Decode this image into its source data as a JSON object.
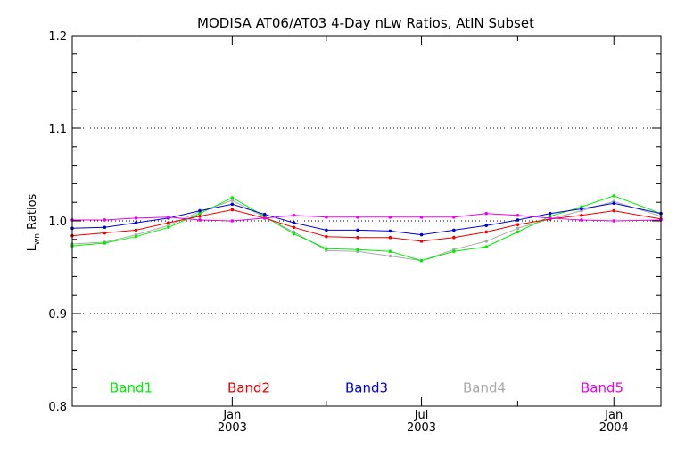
{
  "chart_data": {
    "type": "line",
    "title": "MODISA AT06/AT03 4-Day nLw Ratios, AtIN Subset",
    "ylabel": "Lwn Ratios",
    "ylabel_main": "L",
    "ylabel_sub": "wn",
    "ylabel_rest": " Ratios",
    "xlabel": "",
    "ylim": [
      0.8,
      1.2
    ],
    "yticks": [
      "0.8",
      "0.9",
      "1.0",
      "1.1",
      "1.2"
    ],
    "xlim": [
      "2002-08-01",
      "2004-02-15"
    ],
    "xticks": [
      {
        "month": "Jan",
        "year": "2003",
        "date": "2003-01-01"
      },
      {
        "month": "Jul",
        "year": "2003",
        "date": "2003-07-01"
      },
      {
        "month": "Jan",
        "year": "2004",
        "date": "2004-01-01"
      }
    ],
    "reference_lines": [
      0.9,
      1.0,
      1.1
    ],
    "grid": "dotted horizontal lines at 0.9, 1.0, 1.1",
    "x": [
      "2002-08-01",
      "2002-09-01",
      "2002-10-01",
      "2002-11-01",
      "2002-12-01",
      "2003-01-01",
      "2003-02-01",
      "2003-03-01",
      "2003-04-01",
      "2003-05-01",
      "2003-06-01",
      "2003-07-01",
      "2003-08-01",
      "2003-09-01",
      "2003-10-01",
      "2003-11-01",
      "2003-12-01",
      "2004-01-01",
      "2004-02-15"
    ],
    "series": [
      {
        "name": "Band1",
        "color": "#00ee00",
        "values": [
          0.973,
          0.976,
          0.983,
          0.993,
          1.008,
          1.025,
          1.005,
          0.986,
          0.97,
          0.969,
          0.967,
          0.957,
          0.967,
          0.972,
          0.988,
          1.005,
          1.015,
          1.027,
          1.008
        ]
      },
      {
        "name": "Band2",
        "color": "#ee0000",
        "values": [
          0.984,
          0.987,
          0.99,
          0.998,
          1.005,
          1.012,
          1.003,
          0.993,
          0.983,
          0.982,
          0.982,
          0.978,
          0.982,
          0.988,
          0.996,
          1.002,
          1.006,
          1.011,
          1.002
        ]
      },
      {
        "name": "Band3",
        "color": "#0000dd",
        "values": [
          0.992,
          0.993,
          0.998,
          1.003,
          1.011,
          1.018,
          1.007,
          0.998,
          0.99,
          0.99,
          0.989,
          0.985,
          0.99,
          0.995,
          1.001,
          1.008,
          1.013,
          1.019,
          1.008
        ]
      },
      {
        "name": "Band4",
        "color": "#aaaaaa",
        "values": [
          0.975,
          0.977,
          0.985,
          0.995,
          1.01,
          1.022,
          1.004,
          0.988,
          0.968,
          0.967,
          0.962,
          0.957,
          0.969,
          0.978,
          0.992,
          1.002,
          1.011,
          1.021,
          1.005
        ]
      },
      {
        "name": "Band5",
        "color": "#ee00ee",
        "values": [
          1.001,
          1.001,
          1.003,
          1.004,
          1.001,
          1.0,
          1.003,
          1.006,
          1.004,
          1.004,
          1.004,
          1.004,
          1.004,
          1.008,
          1.006,
          1.003,
          1.001,
          1.0,
          1.001
        ]
      }
    ]
  }
}
